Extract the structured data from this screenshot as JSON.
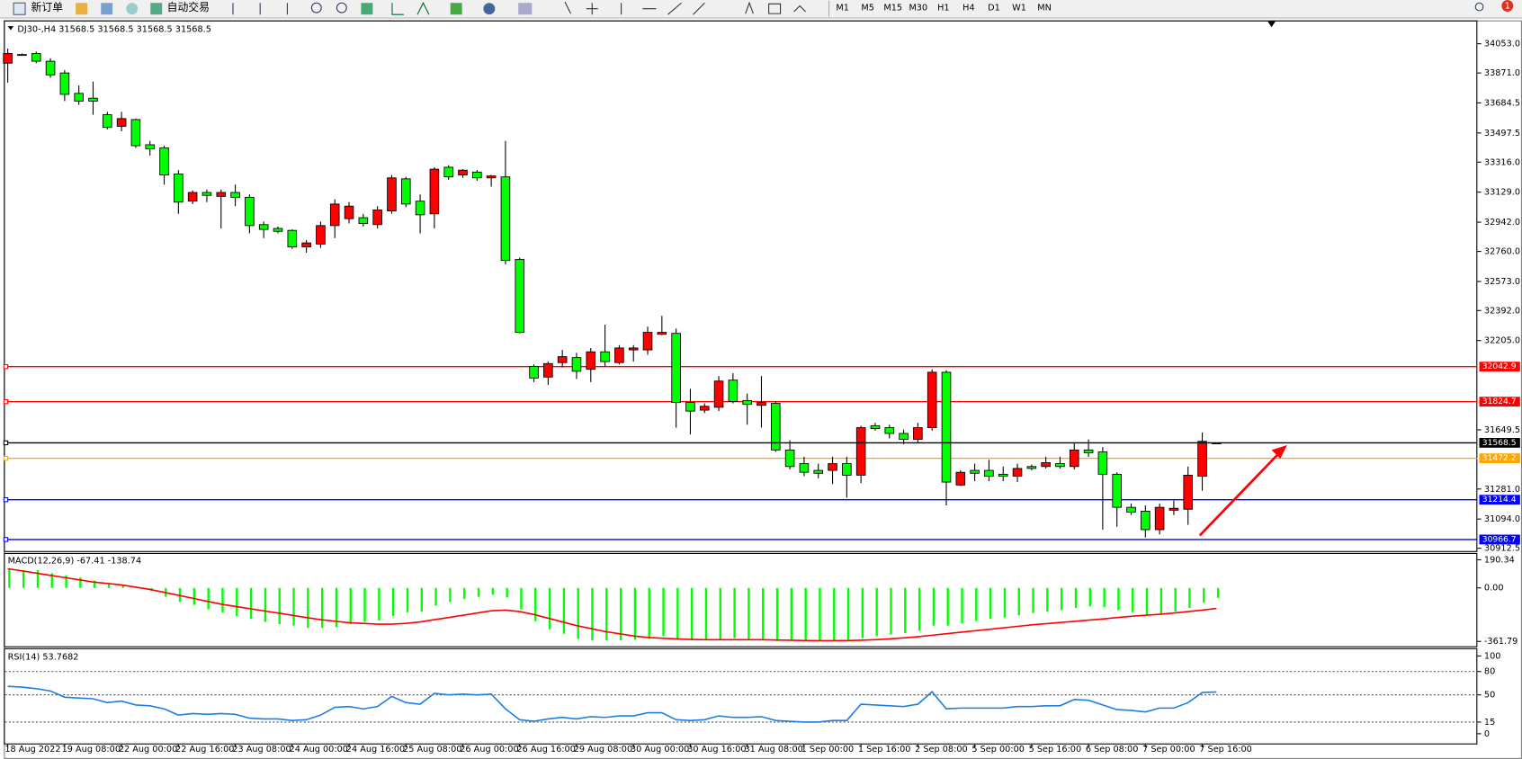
{
  "toolbar": {
    "buttons": [
      "新订单",
      "自动交易"
    ],
    "periods": [
      "M1",
      "M5",
      "M15",
      "M30",
      "H1",
      "H4",
      "D1",
      "W1",
      "MN"
    ],
    "badge": 1
  },
  "chart_data": [
    {
      "type": "candlestick",
      "title": "DJ30-,H4",
      "categories": [
        "18 Aug 2022",
        null,
        null,
        null,
        "19 Aug 08:00",
        null,
        null,
        null,
        "22 Aug 00:00",
        null,
        null,
        null,
        "22 Aug 16:00",
        null,
        null,
        null,
        "23 Aug 08:00",
        null,
        null,
        null,
        "24 Aug 00:00",
        null,
        null,
        null,
        "24 Aug 16:00",
        null,
        null,
        null,
        "25 Aug 08:00",
        null,
        null,
        null,
        "26 Aug 00:00",
        null,
        null,
        null,
        "26 Aug 16:00",
        null,
        null,
        null,
        "29 Aug 08:00",
        null,
        null,
        null,
        "30 Aug 00:00",
        null,
        null,
        null,
        "30 Aug 16:00",
        null,
        null,
        null,
        "31 Aug 08:00",
        null,
        null,
        null,
        "1 Sep 00:00",
        null,
        null,
        null,
        "1 Sep 16:00",
        null,
        null,
        null,
        "2 Sep 08:00",
        null,
        null,
        null,
        "5 Sep 00:00",
        null,
        null,
        null,
        "5 Sep 16:00",
        null,
        null,
        null,
        "6 Sep 08:00",
        null,
        null,
        null,
        "7 Sep 00:00",
        null,
        null,
        null,
        "7 Sep 16:00",
        null
      ],
      "open": [
        33932,
        33986,
        33992,
        33944,
        33871,
        33744,
        33714,
        33611,
        33539,
        33581,
        33424,
        33405,
        33242,
        33073,
        33127,
        33103,
        33127,
        33097,
        32927,
        32903,
        32891,
        32788,
        32806,
        32921,
        32964,
        32970,
        32927,
        33012,
        33212,
        33073,
        32994,
        33284,
        33236,
        33254,
        33218,
        33224,
        32710,
        32044,
        31978,
        32068,
        32099,
        32026,
        32135,
        32068,
        32147,
        32147,
        32244,
        32250,
        31820,
        31772,
        31790,
        31959,
        31832,
        31802,
        31814,
        31524,
        31439,
        31397,
        31397,
        31439,
        31367,
        31675,
        31663,
        31627,
        31590,
        31663,
        32008,
        31306,
        31397,
        31397,
        31373,
        31361,
        31421,
        31421,
        31439,
        31421,
        31524,
        31512,
        31373,
        31167,
        31143,
        31028,
        31149,
        31155,
        31361,
        31568.5
      ],
      "high": [
        34023,
        33992,
        34004,
        33962,
        33889,
        33793,
        33817,
        33629,
        33629,
        33587,
        33448,
        33418,
        33266,
        33139,
        33145,
        33145,
        33176,
        33115,
        32946,
        32915,
        32897,
        32831,
        32946,
        33085,
        33067,
        32994,
        33042,
        33236,
        33224,
        33115,
        33284,
        33297,
        33272,
        33266,
        33236,
        33448,
        32722,
        32056,
        32074,
        32147,
        32129,
        32159,
        32304,
        32177,
        32177,
        32292,
        32359,
        32280,
        31905,
        31814,
        31984,
        32002,
        31875,
        31984,
        31826,
        31584,
        31482,
        31439,
        31482,
        31482,
        31675,
        31693,
        31681,
        31651,
        31693,
        32026,
        32020,
        31397,
        31439,
        31463,
        31421,
        31439,
        31433,
        31482,
        31482,
        31572,
        31590,
        31542,
        31385,
        31191,
        31179,
        31191,
        31209,
        31421,
        31633,
        31568.5
      ],
      "low": [
        33811,
        33980,
        33932,
        33841,
        33696,
        33672,
        33611,
        33520,
        33508,
        33405,
        33357,
        33176,
        32994,
        33055,
        33067,
        32903,
        33042,
        32873,
        32843,
        32873,
        32776,
        32752,
        32782,
        32843,
        32934,
        32915,
        32903,
        32994,
        33036,
        32873,
        32903,
        33206,
        33218,
        33200,
        33163,
        32679,
        32250,
        31947,
        31929,
        32038,
        31966,
        31947,
        32044,
        32056,
        32074,
        32117,
        32238,
        31663,
        31621,
        31754,
        31766,
        31814,
        31681,
        31663,
        31512,
        31403,
        31361,
        31348,
        31312,
        31227,
        31318,
        31645,
        31596,
        31560,
        31572,
        31645,
        31179,
        31300,
        31330,
        31330,
        31330,
        31324,
        31397,
        31409,
        31409,
        31403,
        31482,
        31028,
        31046,
        31119,
        30979,
        30998,
        31119,
        31058,
        31270,
        31568.5
      ],
      "close": [
        33992,
        33980,
        33944,
        33859,
        33738,
        33696,
        33696,
        33532,
        33587,
        33418,
        33399,
        33236,
        33067,
        33127,
        33109,
        33127,
        33097,
        32921,
        32897,
        32885,
        32788,
        32813,
        32921,
        33055,
        33042,
        32934,
        33018,
        33218,
        33055,
        32988,
        33272,
        33224,
        33266,
        33218,
        33230,
        32704,
        32256,
        31972,
        32062,
        32105,
        32014,
        32135,
        32074,
        32159,
        32159,
        32256,
        32256,
        31820,
        31766,
        31796,
        31953,
        31826,
        31808,
        31820,
        31524,
        31421,
        31385,
        31379,
        31439,
        31367,
        31663,
        31657,
        31627,
        31590,
        31663,
        32008,
        31324,
        31385,
        31379,
        31361,
        31361,
        31409,
        31409,
        31445,
        31421,
        31524,
        31506,
        31373,
        31167,
        31137,
        31028,
        31167,
        31161,
        31367,
        31578,
        31568.5
      ],
      "up_color": "#ff0000",
      "down_color": "#00ff00",
      "ylim": [
        30901,
        34180
      ],
      "yticks": [
        {
          "value": 34053,
          "label": "34053.0"
        },
        {
          "value": 33871,
          "label": "33871.0"
        },
        33684.5,
        33497.5,
        {
          "value": 33316,
          "label": "33316.0"
        },
        {
          "value": 33129,
          "label": "33129.0"
        },
        {
          "value": 32942,
          "label": "32942.0"
        },
        {
          "value": 32760,
          "label": "32760.0"
        },
        {
          "value": 32573,
          "label": "32573.0"
        },
        {
          "value": 32392,
          "label": "32392.0"
        },
        {
          "value": 32205,
          "label": "32205.0"
        },
        31649.5,
        {
          "value": 31281,
          "label": "31281.0"
        },
        {
          "value": 31094,
          "label": "31094.0"
        },
        30912.5
      ],
      "levels": [
        {
          "value": 32042.9,
          "color": "#ff0000"
        },
        {
          "value": 31824.7,
          "color": "#ff0000"
        },
        {
          "value": 31472.2,
          "color": "#ffa500"
        },
        {
          "value": 31214.4,
          "color": "#0000ff"
        },
        {
          "value": 30966.7,
          "color": "#0000ff"
        }
      ]
    },
    {
      "type": "macd",
      "title": "MACD(12,26,9)",
      "histogram": {
        "color": "#00ff00",
        "values": [
          130,
          120,
          120,
          100,
          85,
          70,
          50,
          30,
          15,
          5,
          -20,
          -60,
          -95,
          -115,
          -145,
          -165,
          -190,
          -210,
          -230,
          -245,
          -255,
          -270,
          -270,
          -265,
          -245,
          -230,
          -220,
          -190,
          -165,
          -160,
          -120,
          -95,
          -75,
          -60,
          -45,
          -65,
          -145,
          -225,
          -280,
          -310,
          -345,
          -355,
          -355,
          -355,
          -350,
          -345,
          -325,
          -350,
          -355,
          -355,
          -345,
          -340,
          -345,
          -345,
          -360,
          -355,
          -361,
          -358,
          -355,
          -350,
          -340,
          -325,
          -315,
          -305,
          -290,
          -255,
          -255,
          -240,
          -225,
          -210,
          -200,
          -185,
          -170,
          -160,
          -150,
          -135,
          -125,
          -130,
          -150,
          -165,
          -180,
          -175,
          -160,
          -135,
          -100,
          -67.41
        ]
      },
      "signal": {
        "color": "#ff0000",
        "values": [
          130,
          115,
          100,
          85,
          70,
          55,
          40,
          30,
          20,
          5,
          -10,
          -30,
          -50,
          -70,
          -90,
          -110,
          -125,
          -140,
          -155,
          -170,
          -185,
          -200,
          -215,
          -225,
          -235,
          -240,
          -245,
          -245,
          -240,
          -230,
          -215,
          -200,
          -185,
          -170,
          -155,
          -150,
          -160,
          -180,
          -205,
          -230,
          -255,
          -275,
          -295,
          -310,
          -325,
          -335,
          -340,
          -345,
          -348,
          -350,
          -350,
          -350,
          -350,
          -350,
          -352,
          -354,
          -356,
          -357,
          -357,
          -356,
          -354,
          -350,
          -345,
          -338,
          -330,
          -320,
          -310,
          -300,
          -290,
          -280,
          -270,
          -260,
          -250,
          -242,
          -234,
          -226,
          -218,
          -210,
          -200,
          -192,
          -185,
          -178,
          -170,
          -160,
          -150,
          -138.74
        ]
      },
      "ylim": [
        -361.79,
        190.34
      ],
      "yticks": [
        190.34,
        {
          "value": 0,
          "label": "0.00"
        },
        -361.79
      ]
    },
    {
      "type": "line",
      "title": "RSI(14)",
      "color": "#1e7fe0",
      "values": [
        61,
        60,
        58,
        55,
        47,
        46,
        45,
        40,
        42,
        37,
        36,
        32,
        24,
        26,
        25,
        26,
        25,
        20,
        19,
        19,
        17,
        18,
        24,
        34,
        35,
        32,
        35,
        48,
        40,
        38,
        52,
        50,
        51,
        50,
        51,
        32,
        18,
        16,
        19,
        21,
        19,
        22,
        21,
        23,
        23,
        27,
        27,
        18,
        17,
        18,
        23,
        21,
        21,
        22,
        17,
        16,
        15,
        15,
        17,
        17,
        38,
        37,
        36,
        35,
        38,
        54,
        32,
        33,
        33,
        33,
        33,
        35,
        35,
        36,
        36,
        44,
        43,
        37,
        31,
        30,
        28,
        33,
        33,
        40,
        53,
        53.7682
      ],
      "ylim": [
        0,
        100
      ],
      "yticks": [
        0,
        15,
        50,
        80,
        100
      ],
      "levels": [
        15,
        50,
        80
      ]
    }
  ]
}
